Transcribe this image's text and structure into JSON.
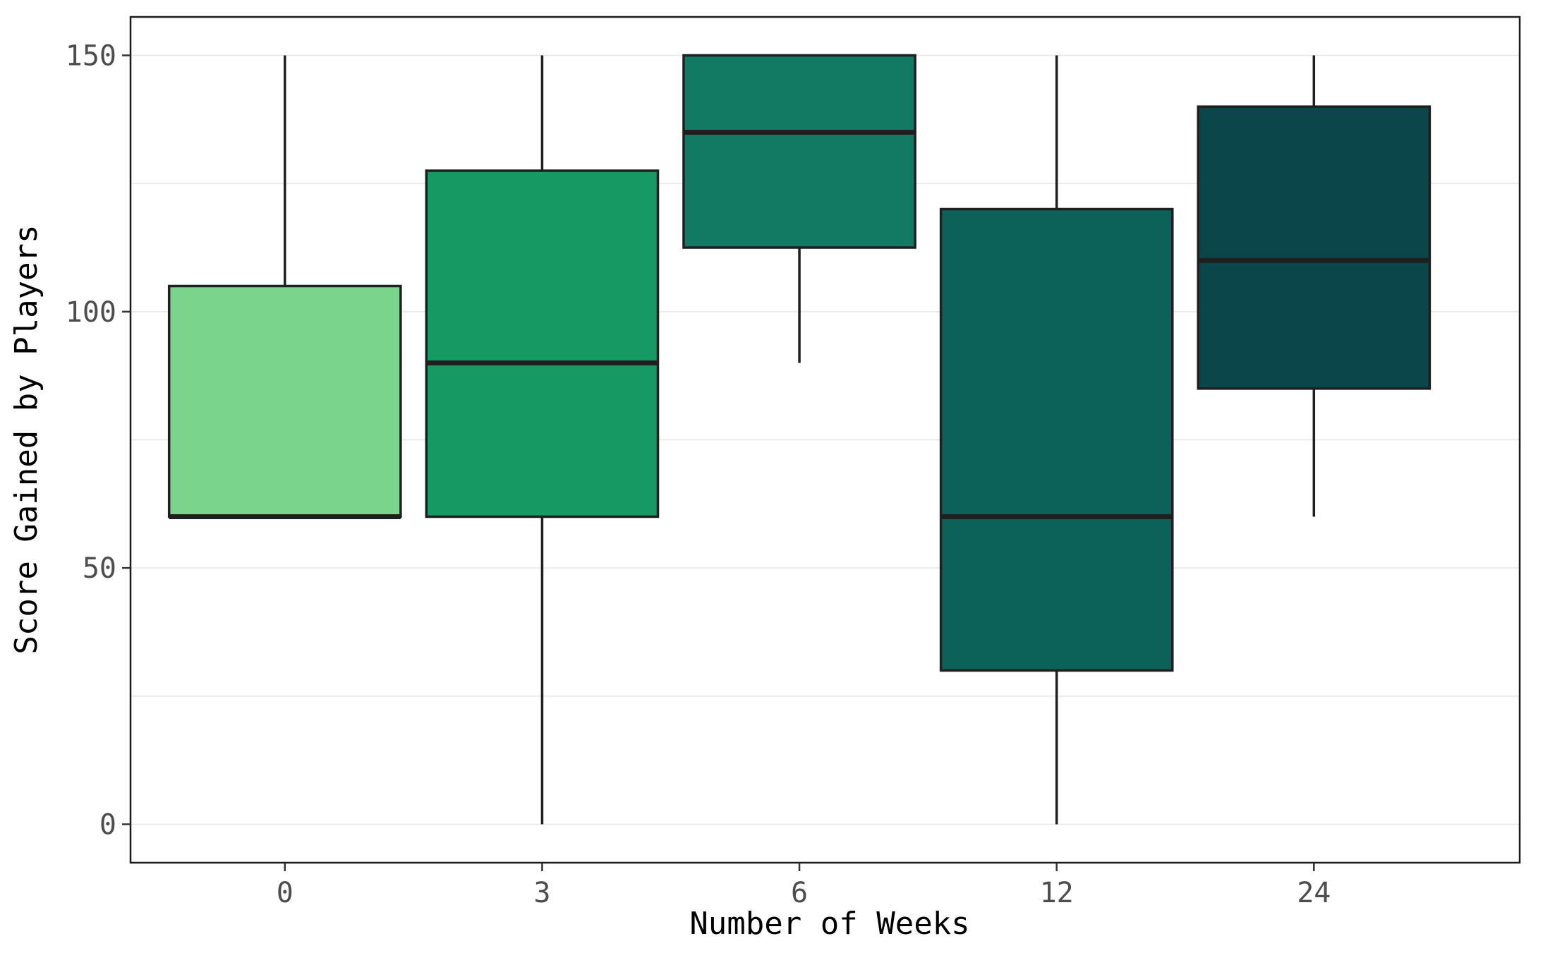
{
  "chart_data": {
    "type": "boxplot",
    "title": "",
    "xlabel": "Number of Weeks",
    "ylabel": "Score Gained by Players",
    "categories": [
      "0",
      "3",
      "6",
      "12",
      "24"
    ],
    "boxes": [
      {
        "category": "0",
        "min": 60,
        "q1": 60,
        "median": 60,
        "q3": 105,
        "max": 150,
        "fill": "#7bd48c"
      },
      {
        "category": "3",
        "min": 0,
        "q1": 60,
        "median": 90,
        "q3": 127.5,
        "max": 150,
        "fill": "#169963"
      },
      {
        "category": "6",
        "min": 90,
        "q1": 112.5,
        "median": 135,
        "q3": 150,
        "max": 150,
        "fill": "#127a62"
      },
      {
        "category": "12",
        "min": 0,
        "q1": 30,
        "median": 60,
        "q3": 120,
        "max": 150,
        "fill": "#0c6259"
      },
      {
        "category": "24",
        "min": 60,
        "q1": 85,
        "median": 110,
        "q3": 140,
        "max": 150,
        "fill": "#0b474a"
      }
    ],
    "y_ticks": [
      "0",
      "50",
      "100",
      "150"
    ],
    "ylim": [
      -7.5,
      157.5
    ],
    "grid": true,
    "legend": "none",
    "colors": {
      "outline": "#1f1f1f",
      "panel_border": "#1a1a1a",
      "grid": "#e6e6e6",
      "tick_text": "#4d4d4d"
    }
  }
}
